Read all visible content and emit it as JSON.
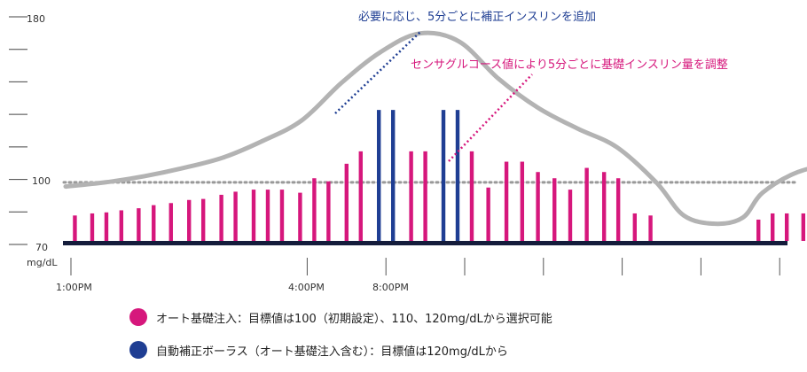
{
  "chart_data": {
    "type": "bar",
    "y_ticks": [
      "180",
      "100",
      "70"
    ],
    "y_unit": "mg/dL",
    "y_range": [
      70,
      180
    ],
    "x_labels": [
      "1:00PM",
      "4:00PM",
      "8:00PM"
    ],
    "target_line": 100,
    "colors": {
      "basal": "#d6177c",
      "bolus": "#1f3e93",
      "sensor": "#b3b3b3",
      "baseline": "#141c3b",
      "annotation_bolus": "#1f3e93",
      "annotation_basal": "#d6177c",
      "target_dots": "#999999"
    },
    "annotations": {
      "bolus": "必要に応じ、5分ごとに補正インスリンを追加",
      "basal": "センサグルコース値により5分ごとに基礎インスリン量を調整"
    },
    "legend": [
      {
        "label": "オート基礎注入：目標値は100（初期設定）、110、120mg/dLから選択可能",
        "color": "#d6177c"
      },
      {
        "label": "自動補正ボーラス（オート基礎注入含む）：目標値は120mg/dLから",
        "color": "#1f3e93"
      }
    ],
    "bars": [
      {
        "x": 0.05,
        "y": 84,
        "s": "basal"
      },
      {
        "x": 0.27,
        "y": 85,
        "s": "basal"
      },
      {
        "x": 0.45,
        "y": 85.5,
        "s": "basal"
      },
      {
        "x": 0.64,
        "y": 86.5,
        "s": "basal"
      },
      {
        "x": 0.86,
        "y": 87.5,
        "s": "basal"
      },
      {
        "x": 1.05,
        "y": 89,
        "s": "basal"
      },
      {
        "x": 1.27,
        "y": 90,
        "s": "basal"
      },
      {
        "x": 1.5,
        "y": 91.5,
        "s": "basal"
      },
      {
        "x": 1.68,
        "y": 92,
        "s": "basal"
      },
      {
        "x": 1.91,
        "y": 94,
        "s": "basal"
      },
      {
        "x": 2.09,
        "y": 95.5,
        "s": "basal"
      },
      {
        "x": 2.32,
        "y": 96.5,
        "s": "basal"
      },
      {
        "x": 2.5,
        "y": 96.5,
        "s": "basal"
      },
      {
        "x": 2.68,
        "y": 96.5,
        "s": "basal"
      },
      {
        "x": 2.91,
        "y": 95,
        "s": "basal"
      },
      {
        "x": 3.09,
        "y": 102,
        "s": "basal"
      },
      {
        "x": 3.27,
        "y": 100.5,
        "s": "basal"
      },
      {
        "x": 3.5,
        "y": 109,
        "s": "basal"
      },
      {
        "x": 3.68,
        "y": 115,
        "s": "basal"
      },
      {
        "x": 3.91,
        "y": 135,
        "s": "bolus"
      },
      {
        "x": 4.09,
        "y": 135,
        "s": "bolus"
      },
      {
        "x": 4.32,
        "y": 115,
        "s": "basal"
      },
      {
        "x": 4.5,
        "y": 115,
        "s": "basal"
      },
      {
        "x": 4.73,
        "y": 135,
        "s": "bolus"
      },
      {
        "x": 4.91,
        "y": 135,
        "s": "bolus"
      },
      {
        "x": 5.09,
        "y": 115,
        "s": "basal"
      },
      {
        "x": 5.3,
        "y": 97.5,
        "s": "basal"
      },
      {
        "x": 5.53,
        "y": 110,
        "s": "basal"
      },
      {
        "x": 5.73,
        "y": 110,
        "s": "basal"
      },
      {
        "x": 5.93,
        "y": 105,
        "s": "basal"
      },
      {
        "x": 6.14,
        "y": 102,
        "s": "basal"
      },
      {
        "x": 6.34,
        "y": 96.5,
        "s": "basal"
      },
      {
        "x": 6.55,
        "y": 107,
        "s": "basal"
      },
      {
        "x": 6.77,
        "y": 105,
        "s": "basal"
      },
      {
        "x": 6.95,
        "y": 102,
        "s": "basal"
      },
      {
        "x": 7.16,
        "y": 85,
        "s": "basal"
      },
      {
        "x": 7.36,
        "y": 84,
        "s": "basal"
      },
      {
        "x": 8.73,
        "y": 82,
        "s": "basal"
      },
      {
        "x": 8.91,
        "y": 85,
        "s": "basal"
      },
      {
        "x": 9.09,
        "y": 85,
        "s": "basal"
      },
      {
        "x": 9.3,
        "y": 85,
        "s": "basal"
      },
      {
        "x": 9.5,
        "y": 85,
        "s": "basal"
      },
      {
        "x": 9.68,
        "y": 85,
        "s": "basal"
      },
      {
        "x": 9.89,
        "y": 96.5,
        "s": "basal"
      },
      {
        "x": 10.09,
        "y": 99,
        "s": "basal"
      },
      {
        "x": 10.3,
        "y": 102.5,
        "s": "basal"
      },
      {
        "x": 10.48,
        "y": 102.5,
        "s": "basal"
      },
      {
        "x": 10.68,
        "y": 106,
        "s": "basal"
      },
      {
        "x": 10.89,
        "y": 106,
        "s": "basal"
      },
      {
        "x": 11.07,
        "y": 106,
        "s": "basal"
      },
      {
        "x": 11.27,
        "y": 115,
        "s": "basal"
      },
      {
        "x": 11.48,
        "y": 119,
        "s": "basal"
      },
      {
        "x": 11.66,
        "y": 119,
        "s": "basal"
      }
    ],
    "sensor_curve": [
      [
        0,
        98
      ],
      [
        0.5,
        100
      ],
      [
        1,
        103
      ],
      [
        1.5,
        107
      ],
      [
        2,
        112
      ],
      [
        2.5,
        120
      ],
      [
        3,
        130
      ],
      [
        3.5,
        148
      ],
      [
        4,
        163
      ],
      [
        4.5,
        172
      ],
      [
        5,
        168
      ],
      [
        5.5,
        150
      ],
      [
        6,
        136
      ],
      [
        6.5,
        126
      ],
      [
        7,
        117
      ],
      [
        7.5,
        100
      ],
      [
        7.85,
        84
      ],
      [
        8.25,
        80
      ],
      [
        8.6,
        83
      ],
      [
        8.85,
        95
      ],
      [
        9.3,
        105
      ],
      [
        10,
        112
      ],
      [
        10.5,
        120
      ],
      [
        11.1,
        135
      ],
      [
        11.5,
        145
      ],
      [
        11.9,
        155
      ]
    ]
  }
}
